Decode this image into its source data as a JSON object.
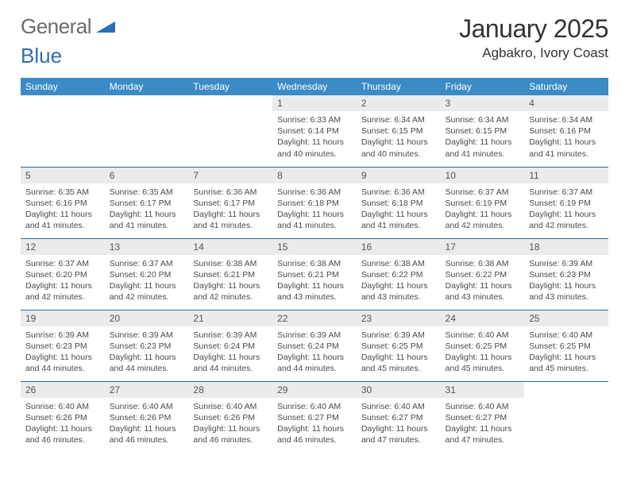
{
  "logo": {
    "part1": "General",
    "part2": "Blue",
    "triangle_color": "#2d6fae"
  },
  "header": {
    "month_year": "January 2025",
    "location": "Agbakro, Ivory Coast"
  },
  "colors": {
    "header_bg": "#3b8bc4",
    "row_separator": "#2b6aa0",
    "daynum_bg": "#ebebeb",
    "text": "#2b2b2b"
  },
  "weekdays": [
    "Sunday",
    "Monday",
    "Tuesday",
    "Wednesday",
    "Thursday",
    "Friday",
    "Saturday"
  ],
  "weeks": [
    [
      null,
      null,
      null,
      {
        "n": "1",
        "sr": "6:33 AM",
        "ss": "6:14 PM",
        "dl": "11 hours and 40 minutes."
      },
      {
        "n": "2",
        "sr": "6:34 AM",
        "ss": "6:15 PM",
        "dl": "11 hours and 40 minutes."
      },
      {
        "n": "3",
        "sr": "6:34 AM",
        "ss": "6:15 PM",
        "dl": "11 hours and 41 minutes."
      },
      {
        "n": "4",
        "sr": "6:34 AM",
        "ss": "6:16 PM",
        "dl": "11 hours and 41 minutes."
      }
    ],
    [
      {
        "n": "5",
        "sr": "6:35 AM",
        "ss": "6:16 PM",
        "dl": "11 hours and 41 minutes."
      },
      {
        "n": "6",
        "sr": "6:35 AM",
        "ss": "6:17 PM",
        "dl": "11 hours and 41 minutes."
      },
      {
        "n": "7",
        "sr": "6:36 AM",
        "ss": "6:17 PM",
        "dl": "11 hours and 41 minutes."
      },
      {
        "n": "8",
        "sr": "6:36 AM",
        "ss": "6:18 PM",
        "dl": "11 hours and 41 minutes."
      },
      {
        "n": "9",
        "sr": "6:36 AM",
        "ss": "6:18 PM",
        "dl": "11 hours and 41 minutes."
      },
      {
        "n": "10",
        "sr": "6:37 AM",
        "ss": "6:19 PM",
        "dl": "11 hours and 42 minutes."
      },
      {
        "n": "11",
        "sr": "6:37 AM",
        "ss": "6:19 PM",
        "dl": "11 hours and 42 minutes."
      }
    ],
    [
      {
        "n": "12",
        "sr": "6:37 AM",
        "ss": "6:20 PM",
        "dl": "11 hours and 42 minutes."
      },
      {
        "n": "13",
        "sr": "6:37 AM",
        "ss": "6:20 PM",
        "dl": "11 hours and 42 minutes."
      },
      {
        "n": "14",
        "sr": "6:38 AM",
        "ss": "6:21 PM",
        "dl": "11 hours and 42 minutes."
      },
      {
        "n": "15",
        "sr": "6:38 AM",
        "ss": "6:21 PM",
        "dl": "11 hours and 43 minutes."
      },
      {
        "n": "16",
        "sr": "6:38 AM",
        "ss": "6:22 PM",
        "dl": "11 hours and 43 minutes."
      },
      {
        "n": "17",
        "sr": "6:38 AM",
        "ss": "6:22 PM",
        "dl": "11 hours and 43 minutes."
      },
      {
        "n": "18",
        "sr": "6:39 AM",
        "ss": "6:23 PM",
        "dl": "11 hours and 43 minutes."
      }
    ],
    [
      {
        "n": "19",
        "sr": "6:39 AM",
        "ss": "6:23 PM",
        "dl": "11 hours and 44 minutes."
      },
      {
        "n": "20",
        "sr": "6:39 AM",
        "ss": "6:23 PM",
        "dl": "11 hours and 44 minutes."
      },
      {
        "n": "21",
        "sr": "6:39 AM",
        "ss": "6:24 PM",
        "dl": "11 hours and 44 minutes."
      },
      {
        "n": "22",
        "sr": "6:39 AM",
        "ss": "6:24 PM",
        "dl": "11 hours and 44 minutes."
      },
      {
        "n": "23",
        "sr": "6:39 AM",
        "ss": "6:25 PM",
        "dl": "11 hours and 45 minutes."
      },
      {
        "n": "24",
        "sr": "6:40 AM",
        "ss": "6:25 PM",
        "dl": "11 hours and 45 minutes."
      },
      {
        "n": "25",
        "sr": "6:40 AM",
        "ss": "6:25 PM",
        "dl": "11 hours and 45 minutes."
      }
    ],
    [
      {
        "n": "26",
        "sr": "6:40 AM",
        "ss": "6:26 PM",
        "dl": "11 hours and 46 minutes."
      },
      {
        "n": "27",
        "sr": "6:40 AM",
        "ss": "6:26 PM",
        "dl": "11 hours and 46 minutes."
      },
      {
        "n": "28",
        "sr": "6:40 AM",
        "ss": "6:26 PM",
        "dl": "11 hours and 46 minutes."
      },
      {
        "n": "29",
        "sr": "6:40 AM",
        "ss": "6:27 PM",
        "dl": "11 hours and 46 minutes."
      },
      {
        "n": "30",
        "sr": "6:40 AM",
        "ss": "6:27 PM",
        "dl": "11 hours and 47 minutes."
      },
      {
        "n": "31",
        "sr": "6:40 AM",
        "ss": "6:27 PM",
        "dl": "11 hours and 47 minutes."
      },
      null
    ]
  ],
  "labels": {
    "sunrise": "Sunrise:",
    "sunset": "Sunset:",
    "daylight": "Daylight:"
  }
}
